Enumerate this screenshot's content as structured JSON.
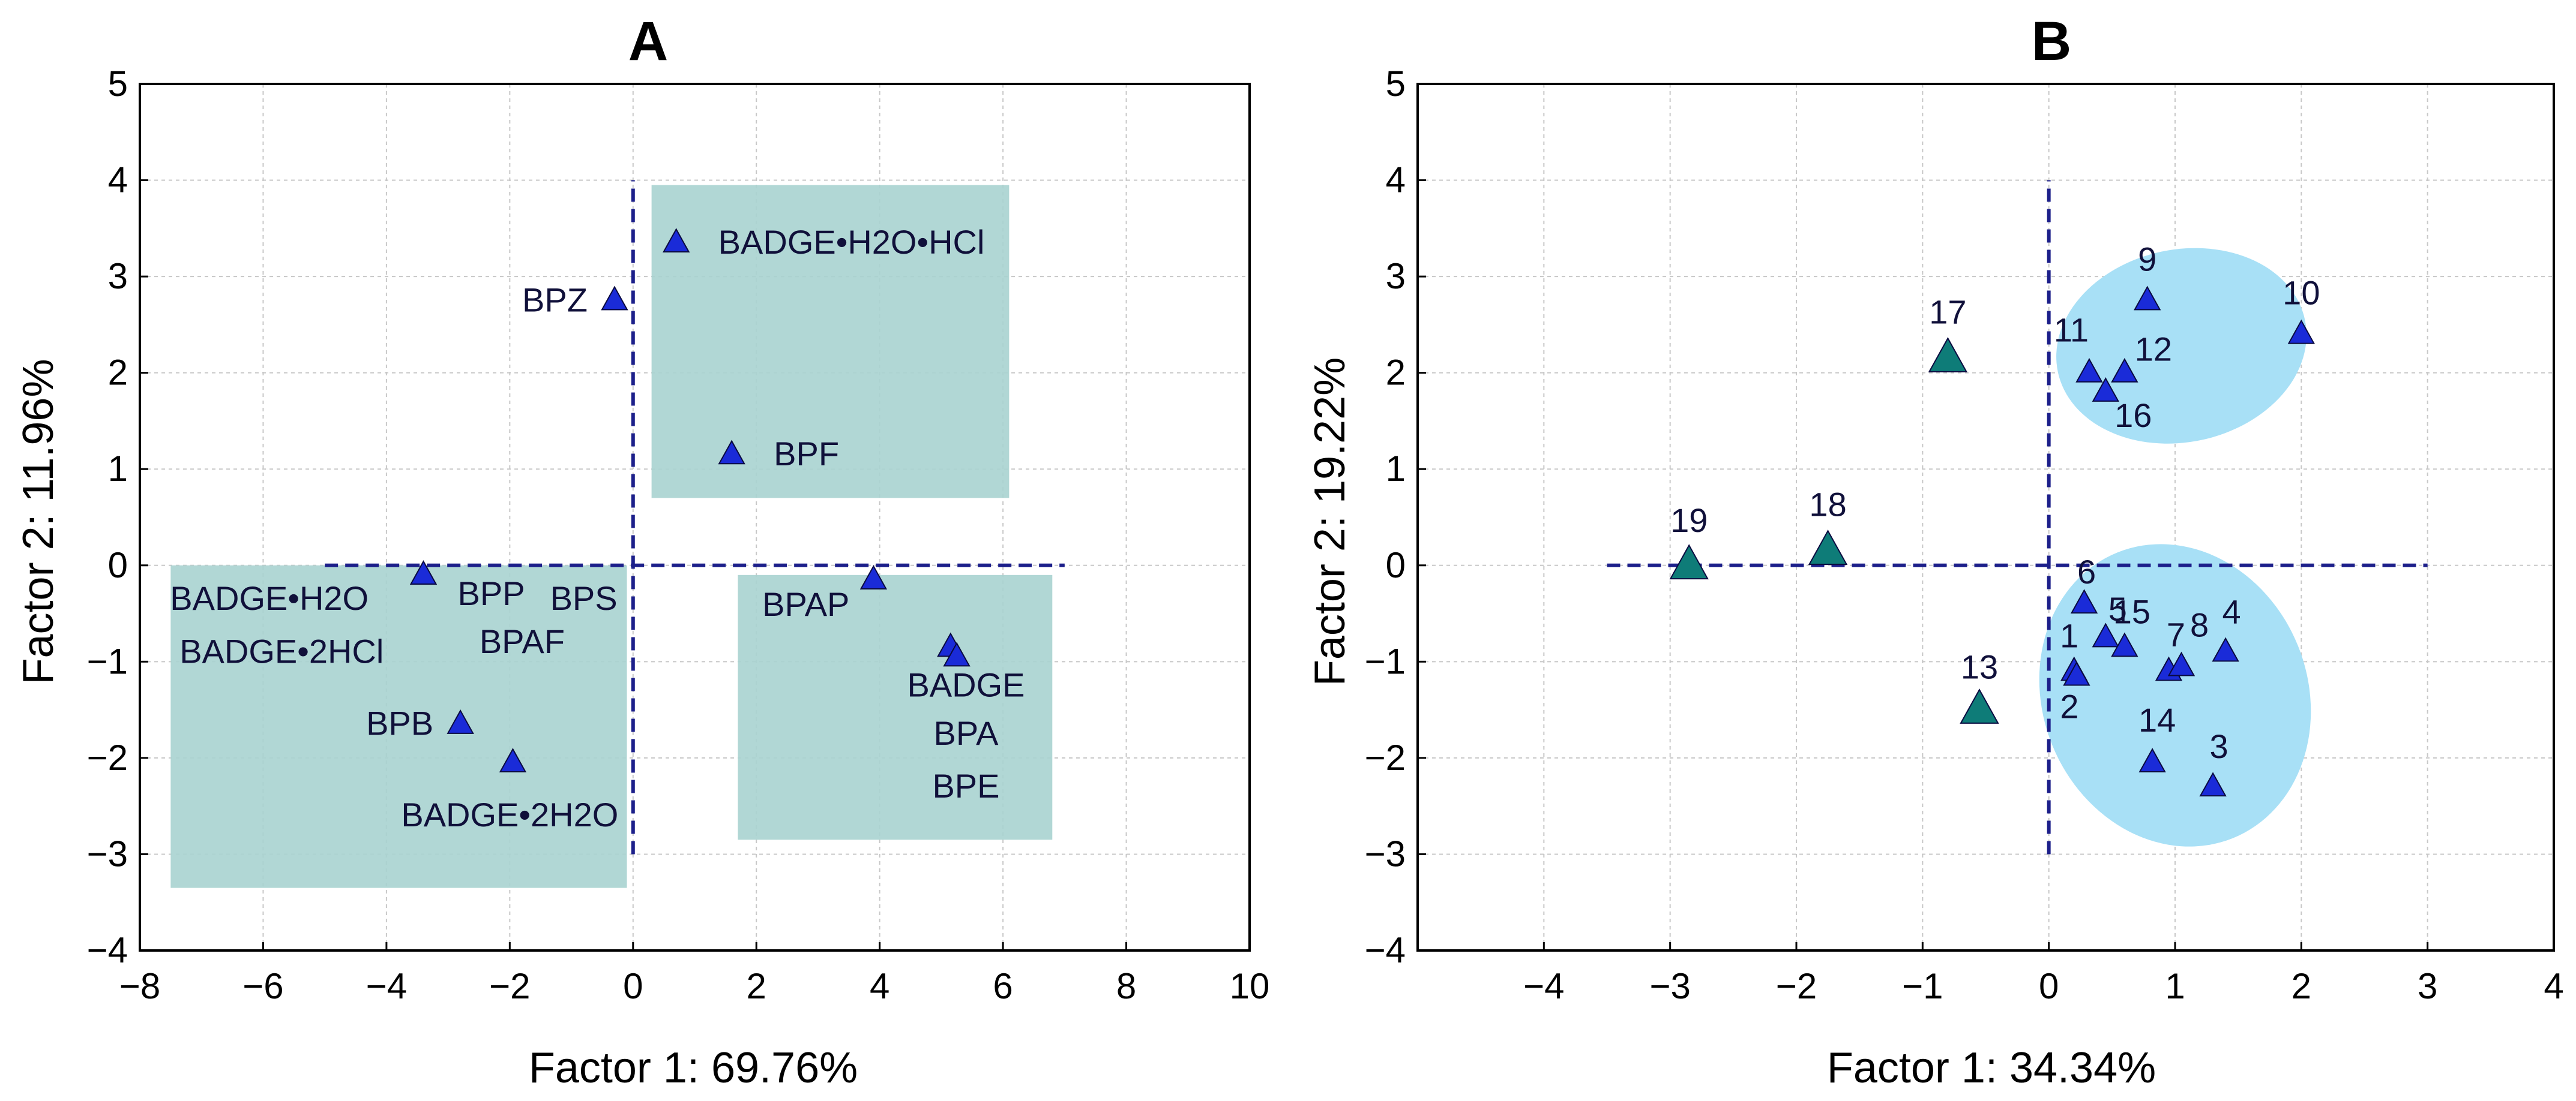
{
  "colors": {
    "marker_blue": "#1a2bd8",
    "marker_teal": "#0e7c78",
    "region_teal": "#a9d3d0",
    "ellipse_blue": "#a8e0f6",
    "dashed_line": "#1c1f8a",
    "grid": "#c8c8c8"
  },
  "chart_data": [
    {
      "panel": "A",
      "type": "scatter",
      "title": "A",
      "xlabel": "Factor 1: 69.76%",
      "ylabel": "Factor 2: 11.96%",
      "xlim": [
        -8,
        10
      ],
      "ylim": [
        -4,
        5
      ],
      "xticks": [
        -8,
        -6,
        -4,
        -2,
        0,
        2,
        4,
        6,
        8,
        10
      ],
      "yticks": [
        5,
        4,
        3,
        2,
        1,
        0,
        -1,
        -2,
        -3,
        -4
      ],
      "grid": true,
      "reference_lines": {
        "h": {
          "y": 0,
          "x": [
            -5,
            7
          ]
        },
        "v": {
          "x": 0,
          "y": [
            -3,
            4
          ]
        }
      },
      "regions": [
        {
          "x": [
            0.3,
            6.1
          ],
          "y": [
            0.7,
            3.95
          ]
        },
        {
          "x": [
            -7.5,
            -0.1
          ],
          "y": [
            -3.35,
            0
          ]
        },
        {
          "x": [
            1.7,
            6.8
          ],
          "y": [
            -2.85,
            -0.1
          ]
        }
      ],
      "points": [
        {
          "x": 0.7,
          "y": 3.35,
          "label": "BADGE•H2O•HCl"
        },
        {
          "x": -0.3,
          "y": 2.75,
          "label": "BPZ"
        },
        {
          "x": 1.6,
          "y": 1.15,
          "label": "BPF"
        },
        {
          "x": -3.4,
          "y": -0.1
        },
        {
          "x": 3.9,
          "y": -0.15,
          "label": "BPAP"
        },
        {
          "x": 5.15,
          "y": -0.85
        },
        {
          "x": 5.25,
          "y": -0.95
        },
        {
          "x": -2.8,
          "y": -1.65,
          "label": "BPB"
        },
        {
          "x": -1.95,
          "y": -2.05
        }
      ],
      "text_labels": [
        {
          "text": "BADGE•H2O",
          "x": -5.9,
          "y": -0.35
        },
        {
          "text": "BPP",
          "x": -2.3,
          "y": -0.3
        },
        {
          "text": "BPS",
          "x": -0.8,
          "y": -0.35
        },
        {
          "text": "BADGE•2HCl",
          "x": -5.7,
          "y": -0.9
        },
        {
          "text": "BPAF",
          "x": -1.8,
          "y": -0.8
        },
        {
          "text": "BADGE•2H2O",
          "x": -2.0,
          "y": -2.6
        },
        {
          "text": "BADGE",
          "x": 5.4,
          "y": -1.25
        },
        {
          "text": "BPA",
          "x": 5.4,
          "y": -1.75
        },
        {
          "text": "BPE",
          "x": 5.4,
          "y": -2.3
        }
      ]
    },
    {
      "panel": "B",
      "type": "scatter",
      "title": "B",
      "xlabel": "Factor 1: 34.34%",
      "ylabel": "Factor 2: 19.22%",
      "xlim": [
        -5,
        4
      ],
      "ylim": [
        -4,
        5
      ],
      "xticks": [
        -4,
        -3,
        -2,
        -1,
        0,
        1,
        2,
        3,
        4
      ],
      "yticks": [
        5,
        4,
        3,
        2,
        1,
        0,
        -1,
        -2,
        -3,
        -4
      ],
      "grid": true,
      "reference_lines": {
        "h": {
          "y": 0,
          "x": [
            -3.5,
            3
          ]
        },
        "v": {
          "x": 0,
          "y": [
            -3,
            4
          ]
        }
      },
      "ellipses": [
        {
          "cx": 1.05,
          "cy": 2.28,
          "rx": 1.0,
          "ry": 1.0,
          "rotate": -12
        },
        {
          "cx": 1.0,
          "cy": -1.35,
          "rx": 1.05,
          "ry": 1.6,
          "rotate": -22
        }
      ],
      "series": [
        {
          "name": "blue",
          "points": [
            {
              "x": 0.2,
              "y": -1.1,
              "label": "1"
            },
            {
              "x": 0.22,
              "y": -1.15,
              "label": "2"
            },
            {
              "x": 1.3,
              "y": -2.3,
              "label": "3"
            },
            {
              "x": 1.4,
              "y": -0.9,
              "label": "4"
            },
            {
              "x": 0.45,
              "y": -0.75,
              "label": "5"
            },
            {
              "x": 0.28,
              "y": -0.4,
              "label": "6"
            },
            {
              "x": 0.95,
              "y": -1.1,
              "label": "7"
            },
            {
              "x": 1.05,
              "y": -1.05,
              "label": "8"
            },
            {
              "x": 0.78,
              "y": 2.75,
              "label": "9"
            },
            {
              "x": 2.0,
              "y": 2.4,
              "label": "10"
            },
            {
              "x": 0.32,
              "y": 2.0,
              "label": "11"
            },
            {
              "x": 0.6,
              "y": 2.0,
              "label": "12"
            },
            {
              "x": 0.82,
              "y": -2.05,
              "label": "14"
            },
            {
              "x": 0.6,
              "y": -0.85,
              "label": "15"
            },
            {
              "x": 0.45,
              "y": 1.8,
              "label": "16"
            }
          ]
        },
        {
          "name": "teal",
          "points": [
            {
              "x": -0.55,
              "y": -1.5,
              "label": "13"
            },
            {
              "x": -0.8,
              "y": 2.15,
              "label": "17"
            },
            {
              "x": -1.75,
              "y": 0.15,
              "label": "18"
            },
            {
              "x": -2.85,
              "y": 0.0,
              "label": "19"
            }
          ]
        }
      ]
    }
  ]
}
